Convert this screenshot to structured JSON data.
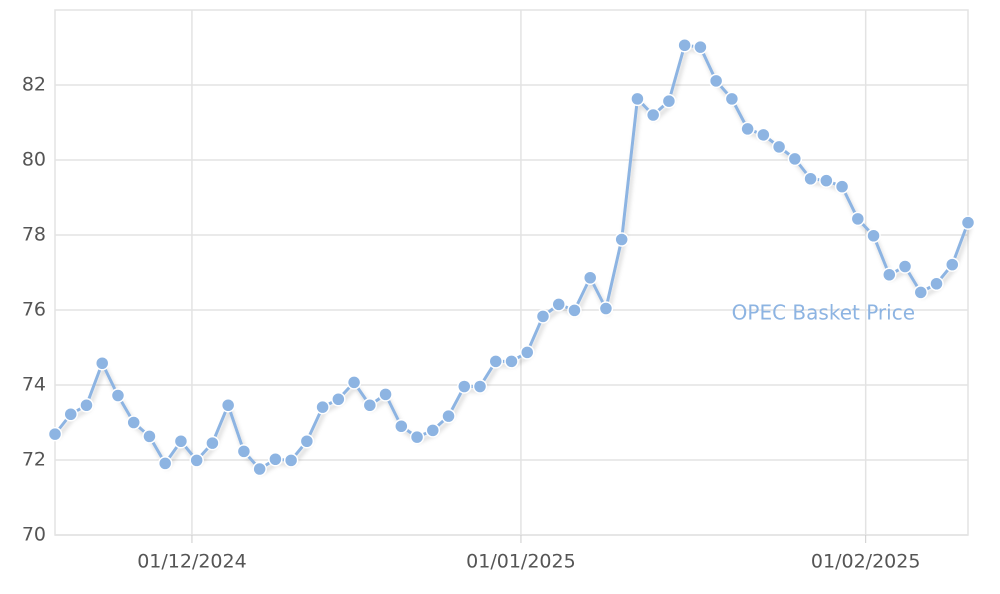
{
  "chart_data": {
    "type": "line",
    "categories": [
      null,
      null,
      null,
      null,
      null,
      null,
      null,
      null,
      null,
      null,
      null,
      null,
      null,
      null,
      null,
      null,
      null,
      null,
      null,
      null,
      null,
      null,
      null,
      null,
      null,
      null,
      null,
      null,
      null,
      null,
      null,
      null,
      null,
      null,
      null,
      null,
      null,
      null,
      null,
      null,
      null,
      null,
      null,
      null,
      null,
      null,
      null,
      null,
      null,
      null,
      null,
      null,
      null,
      null,
      null,
      null,
      null,
      null,
      null
    ],
    "series": [
      {
        "name": "OPEC Basket Price",
        "color": "#8db4e2",
        "values": [
          72.69,
          73.22,
          73.46,
          74.58,
          73.72,
          73.0,
          72.63,
          71.91,
          72.5,
          71.99,
          72.45,
          73.46,
          72.23,
          71.76,
          72.02,
          71.99,
          72.5,
          73.41,
          73.62,
          74.07,
          73.46,
          73.75,
          72.9,
          72.61,
          72.79,
          73.17,
          73.96,
          73.96,
          74.63,
          74.63,
          74.87,
          75.83,
          76.15,
          75.99,
          76.86,
          76.04,
          77.88,
          81.63,
          81.2,
          81.57,
          83.06,
          83.01,
          82.11,
          81.63,
          80.83,
          80.67,
          80.35,
          80.03,
          79.5,
          79.45,
          79.29,
          78.43,
          77.98,
          76.94,
          77.16,
          76.47,
          76.7,
          77.21,
          78.33
        ]
      }
    ],
    "xlim": [
      0,
      58
    ],
    "xticks": [
      {
        "value": 8.7,
        "label": "01/12/2024"
      },
      {
        "value": 29.6,
        "label": "01/01/2025"
      },
      {
        "value": 51.5,
        "label": "01/02/2025"
      }
    ],
    "ylim": [
      70,
      84
    ],
    "yticks": [
      70,
      72,
      74,
      76,
      78,
      80,
      82
    ],
    "grid": true
  }
}
